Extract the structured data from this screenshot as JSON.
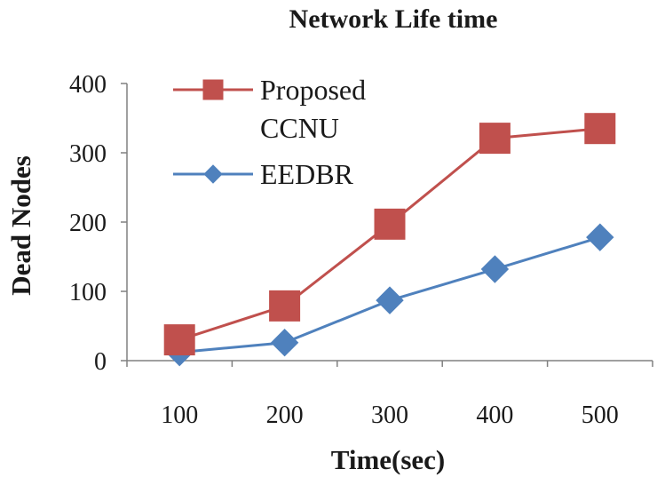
{
  "chart_data": {
    "type": "line",
    "title": "Network Life time",
    "xlabel": "Time(sec)",
    "ylabel": "Dead Nodes",
    "categories": [
      "100",
      "200",
      "300",
      "400",
      "500"
    ],
    "ylim": [
      0,
      400
    ],
    "yticks": [
      "0",
      "100",
      "200",
      "300",
      "400"
    ],
    "legend_position": "top-left",
    "series": [
      {
        "name": "Proposed CCNU",
        "legend_lines": [
          "Proposed",
          "CCNU"
        ],
        "color": "#C0504D",
        "marker": "square",
        "values": [
          30,
          79,
          197,
          321,
          335
        ]
      },
      {
        "name": "EEDBR",
        "legend_lines": [
          "EEDBR"
        ],
        "color": "#4F81BD",
        "marker": "diamond",
        "values": [
          12,
          26,
          87,
          132,
          178
        ]
      }
    ]
  }
}
